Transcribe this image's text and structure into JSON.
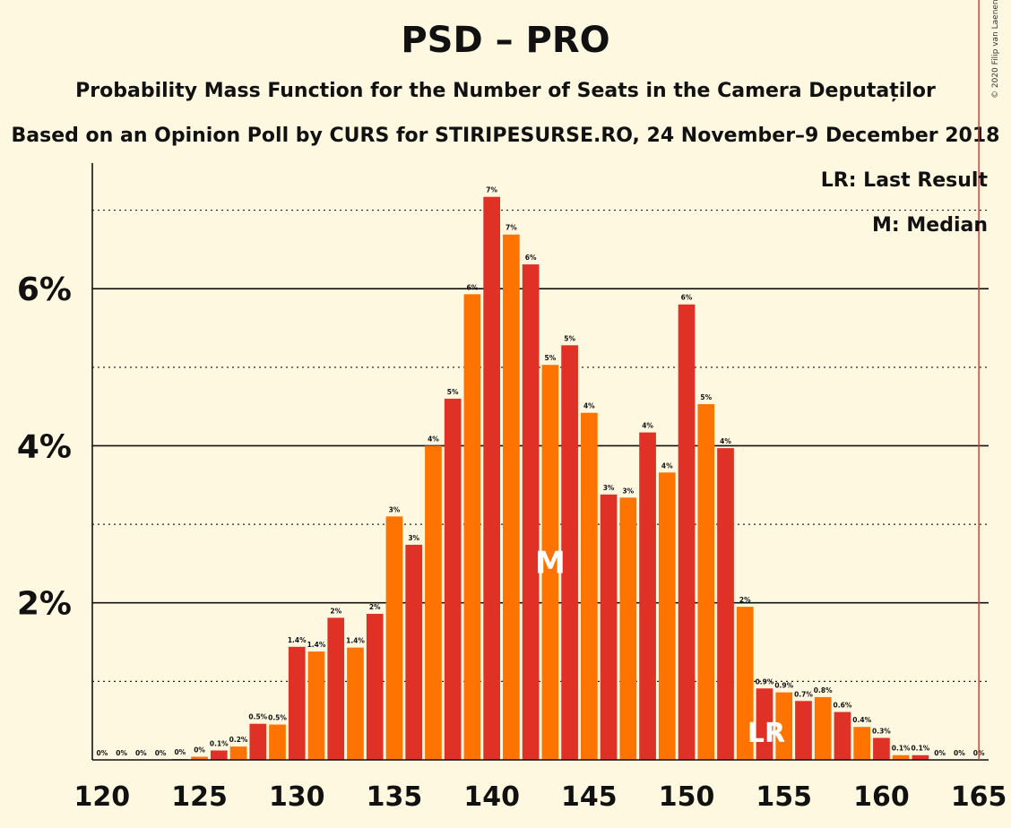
{
  "title": "PSD – PRO",
  "subtitle": "Probability Mass Function for the Number of Seats in the Camera Deputaților",
  "subtitle2": "Based on an Opinion Poll by CURS for STIRIPESURSE.RO, 24 November–9 December 2018",
  "copyright": "© 2020 Filip van Laenen",
  "legend": {
    "last_result": "LR: Last Result",
    "median": "M: Median"
  },
  "chart_data": {
    "type": "bar",
    "x": [
      120,
      121,
      122,
      123,
      124,
      125,
      126,
      127,
      128,
      129,
      130,
      131,
      132,
      133,
      134,
      135,
      136,
      137,
      138,
      139,
      140,
      141,
      142,
      143,
      144,
      145,
      146,
      147,
      148,
      149,
      150,
      151,
      152,
      153,
      154,
      155,
      156,
      157,
      158,
      159,
      160,
      161,
      162,
      163,
      164,
      165
    ],
    "values": [
      0,
      0,
      0,
      0,
      0.01,
      0.04,
      0.12,
      0.17,
      0.46,
      0.45,
      1.44,
      1.38,
      1.81,
      1.43,
      1.86,
      3.1,
      2.74,
      4.0,
      4.6,
      5.93,
      7.17,
      6.69,
      6.31,
      5.03,
      5.28,
      4.42,
      3.38,
      3.34,
      4.17,
      3.66,
      5.8,
      4.53,
      3.97,
      1.95,
      0.91,
      0.86,
      0.75,
      0.8,
      0.61,
      0.42,
      0.28,
      0.06,
      0.06,
      0,
      0,
      0
    ],
    "data_labels": [
      "0%",
      "0%",
      "0%",
      "0%",
      "0%",
      "0%",
      "0.1%",
      "0.2%",
      "0.5%",
      "0.5%",
      "1.4%",
      "1.4%",
      "2%",
      "1.4%",
      "2%",
      "3%",
      "3%",
      "4%",
      "5%",
      "6%",
      "7%",
      "7%",
      "6%",
      "5%",
      "5%",
      "4%",
      "3%",
      "3%",
      "4%",
      "4%",
      "6%",
      "5%",
      "4%",
      "2%",
      "0.9%",
      "0.9%",
      "0.7%",
      "0.8%",
      "0.6%",
      "0.4%",
      "0.3%",
      "0.1%",
      "0.1%",
      "0%",
      "0%",
      "0%"
    ],
    "x_ticks": [
      120,
      125,
      130,
      135,
      140,
      145,
      150,
      155,
      160,
      165
    ],
    "x_tick_labels": [
      "120",
      "125",
      "130",
      "135",
      "140",
      "145",
      "150",
      "155",
      "160",
      "165"
    ],
    "y_ticks": [
      2,
      4,
      6
    ],
    "y_tick_labels": [
      "2%",
      "4%",
      "6%"
    ],
    "y_minor_gridlines": [
      1,
      3,
      5,
      7
    ],
    "ylim": [
      0,
      7.6
    ],
    "xlim": [
      119.5,
      165.5
    ],
    "median": 143,
    "median_label": "M",
    "last_result": 154,
    "last_result_label": "LR",
    "majority_line": 165,
    "colors": {
      "red": "#df3125",
      "orange": "#ff7400",
      "majority": "#d0423c",
      "text": "#111111"
    }
  }
}
